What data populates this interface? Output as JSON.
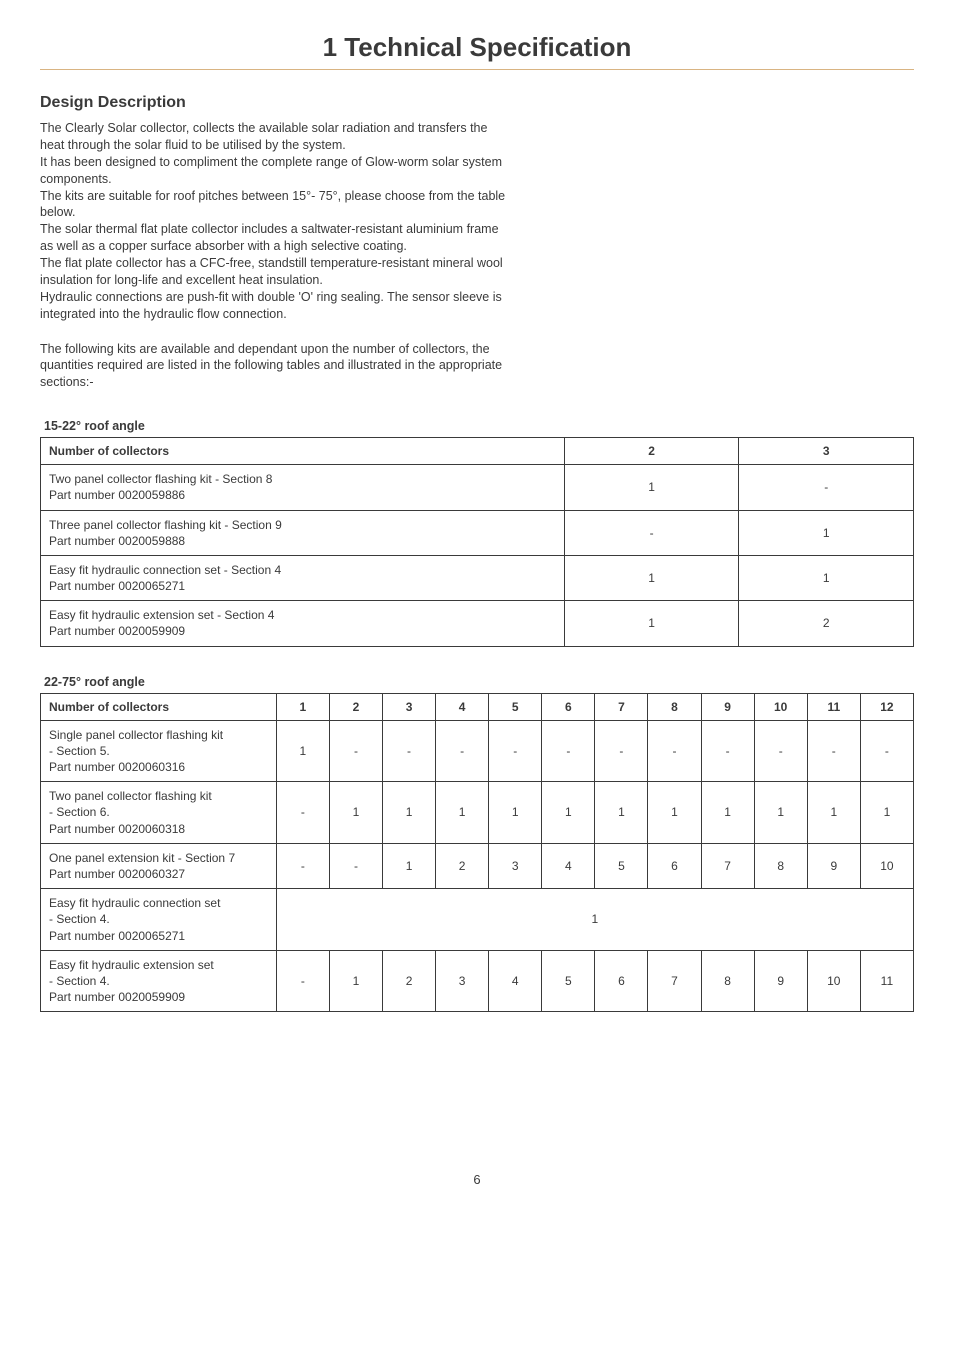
{
  "page": {
    "title": "1 Technical Specification",
    "section_heading": "Design Description",
    "page_number": "6",
    "rule_color": "#d9b482",
    "text_color": "#3a3a3a",
    "background_color": "#ffffff",
    "title_fontsize": 26,
    "heading_fontsize": 16,
    "body_fontsize": 12.5,
    "table_fontsize": 12
  },
  "body": {
    "p1": "The Clearly Solar collector, collects the available solar radiation and transfers the heat through the solar fluid to be utilised by the system.",
    "p2": "It has been designed to compliment the complete range of Glow-worm solar system components.",
    "p3": "The kits are suitable for roof pitches between 15°- 75°, please choose from the table below.",
    "p4": "The solar thermal flat plate collector includes a saltwater-resistant aluminium frame as well as a copper surface absorber with a high selective coating.",
    "p5": "The flat plate collector has a CFC-free, standstill temperature-resistant mineral wool insulation for long-life and excellent heat insulation.",
    "p6": "Hydraulic connections are push-fit with double 'O' ring sealing. The sensor sleeve is integrated into the hydraulic flow connection.",
    "p7": "The following kits are available and dependant upon the number of collectors, the quantities required are listed in the following tables and illustrated in the appropriate sections:-"
  },
  "table1": {
    "caption": "15-22° roof angle",
    "type": "table",
    "header": {
      "label": "Number of collectors",
      "c2": "2",
      "c3": "3"
    },
    "rows": [
      {
        "label_l1": "Two panel collector flashing kit - Section 8",
        "label_l2": "Part number 0020059886",
        "c2": "1",
        "c3": "-"
      },
      {
        "label_l1": "Three panel collector flashing kit - Section 9",
        "label_l2": "Part number 0020059888",
        "c2": "-",
        "c3": "1"
      },
      {
        "label_l1": "Easy fit hydraulic connection set - Section 4",
        "label_l2": "Part number 0020065271",
        "c2": "1",
        "c3": "1"
      },
      {
        "label_l1": "Easy fit hydraulic extension set - Section 4",
        "label_l2": "Part number 0020059909",
        "c2": "1",
        "c3": "2"
      }
    ]
  },
  "table2": {
    "caption": "22-75° roof angle",
    "type": "table",
    "header": {
      "label": "Number of collectors",
      "c1": "1",
      "c2": "2",
      "c3": "3",
      "c4": "4",
      "c5": "5",
      "c6": "6",
      "c7": "7",
      "c8": "8",
      "c9": "9",
      "c10": "10",
      "c11": "11",
      "c12": "12"
    },
    "rows": [
      {
        "label_l1": "Single panel collector flashing kit",
        "label_l2": "- Section 5.",
        "label_l3": "Part number 0020060316",
        "c1": "1",
        "c2": "-",
        "c3": "-",
        "c4": "-",
        "c5": "-",
        "c6": "-",
        "c7": "-",
        "c8": "-",
        "c9": "-",
        "c10": "-",
        "c11": "-",
        "c12": "-"
      },
      {
        "label_l1": "Two panel collector flashing kit",
        "label_l2": "- Section 6.",
        "label_l3": "Part number 0020060318",
        "c1": "-",
        "c2": "1",
        "c3": "1",
        "c4": "1",
        "c5": "1",
        "c6": "1",
        "c7": "1",
        "c8": "1",
        "c9": "1",
        "c10": "1",
        "c11": "1",
        "c12": "1"
      },
      {
        "label_l1": "One panel extension kit - Section 7",
        "label_l2": "Part number 0020060327",
        "label_l3": "",
        "c1": "-",
        "c2": "-",
        "c3": "1",
        "c4": "2",
        "c5": "3",
        "c6": "4",
        "c7": "5",
        "c8": "6",
        "c9": "7",
        "c10": "8",
        "c11": "9",
        "c12": "10"
      },
      {
        "label_l1": "Easy fit hydraulic connection set",
        "label_l2": "- Section 4.",
        "label_l3": "Part number 0020065271",
        "span": "1"
      },
      {
        "label_l1": "Easy fit hydraulic extension set",
        "label_l2": "- Section 4.",
        "label_l3": "Part number 0020059909",
        "c1": "-",
        "c2": "1",
        "c3": "2",
        "c4": "3",
        "c5": "4",
        "c6": "5",
        "c7": "6",
        "c8": "7",
        "c9": "8",
        "c10": "9",
        "c11": "10",
        "c12": "11"
      }
    ]
  }
}
